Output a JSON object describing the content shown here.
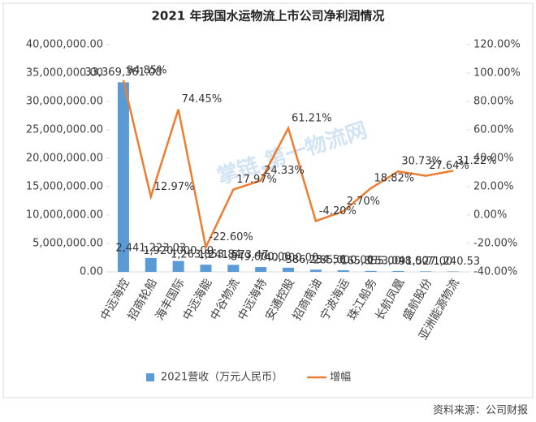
{
  "chart_data": {
    "type": "bar_line",
    "title": "2021 年我国水运物流上市公司净利润情况",
    "watermark": "掌链.第一物流网",
    "source": "资料来源：公司财报",
    "categories": [
      "中远海控",
      "招商轮船",
      "海丰国际",
      "中远海能",
      "中谷物流",
      "中远海特",
      "安通控股",
      "招商南油",
      "宁波海运",
      "珠江船务",
      "长航凤凰",
      "盛航股份",
      "亚洲能源物流"
    ],
    "series": [
      {
        "name": "2021营收（万元人民币）",
        "color": "#5b9bd5",
        "type": "bar",
        "values": [
          33369361.08,
          2441223.03,
          1920000,
          1263853.84,
          1241573.47,
          849000,
          740000,
          386234.56,
          285000,
          165855,
          153048,
          91527,
          71240.53
        ],
        "value_labels": [
          "33,369,361.08",
          "2,441,223.03",
          "1,920,000.00",
          "1,263,853.84",
          "1,241,573.47",
          "849,000.00",
          "740,000.00",
          "386,234.56",
          "285,000.00",
          "165,855.00",
          "153,048.00",
          "91,527.00",
          "71,240.53"
        ]
      },
      {
        "name": "增幅",
        "color": "#ed7d31",
        "type": "line",
        "axis": "y2",
        "values": [
          94.85,
          12.97,
          74.45,
          -22.6,
          17.97,
          24.33,
          61.21,
          -4.2,
          2.7,
          18.82,
          30.73,
          27.64,
          31.22
        ],
        "value_labels": [
          "94.85%",
          "12.97%",
          "74.45%",
          "-22.60%",
          "17.97%",
          "24.33%",
          "61.21%",
          "-4.20%",
          "2.70%",
          "18.82%",
          "30.73%",
          "27.64%",
          "31.22%"
        ]
      }
    ],
    "ylim": [
      0,
      40000000
    ],
    "yticks": [
      {
        "value": 0,
        "label": "0.00"
      },
      {
        "value": 5000000,
        "label": "5,000,000.00"
      },
      {
        "value": 10000000,
        "label": "10,000,000.00"
      },
      {
        "value": 15000000,
        "label": "15,000,000.00"
      },
      {
        "value": 20000000,
        "label": "20,000,000.00"
      },
      {
        "value": 25000000,
        "label": "25,000,000.00"
      },
      {
        "value": 30000000,
        "label": "30,000,000.00"
      },
      {
        "value": 35000000,
        "label": "35,000,000.00"
      },
      {
        "value": 40000000,
        "label": "40,000,000.00"
      }
    ],
    "y2lim": [
      -40,
      120
    ],
    "y2ticks": [
      {
        "value": -40,
        "label": "-40.00%"
      },
      {
        "value": -20,
        "label": "-20.00%"
      },
      {
        "value": 0,
        "label": "0.00%"
      },
      {
        "value": 20,
        "label": "20.00%"
      },
      {
        "value": 40,
        "label": "40.00%"
      },
      {
        "value": 60,
        "label": "60.00%"
      },
      {
        "value": 80,
        "label": "80.00%"
      },
      {
        "value": 100,
        "label": "100.00%"
      },
      {
        "value": 120,
        "label": "120.00%"
      }
    ],
    "legend": "bottom"
  }
}
